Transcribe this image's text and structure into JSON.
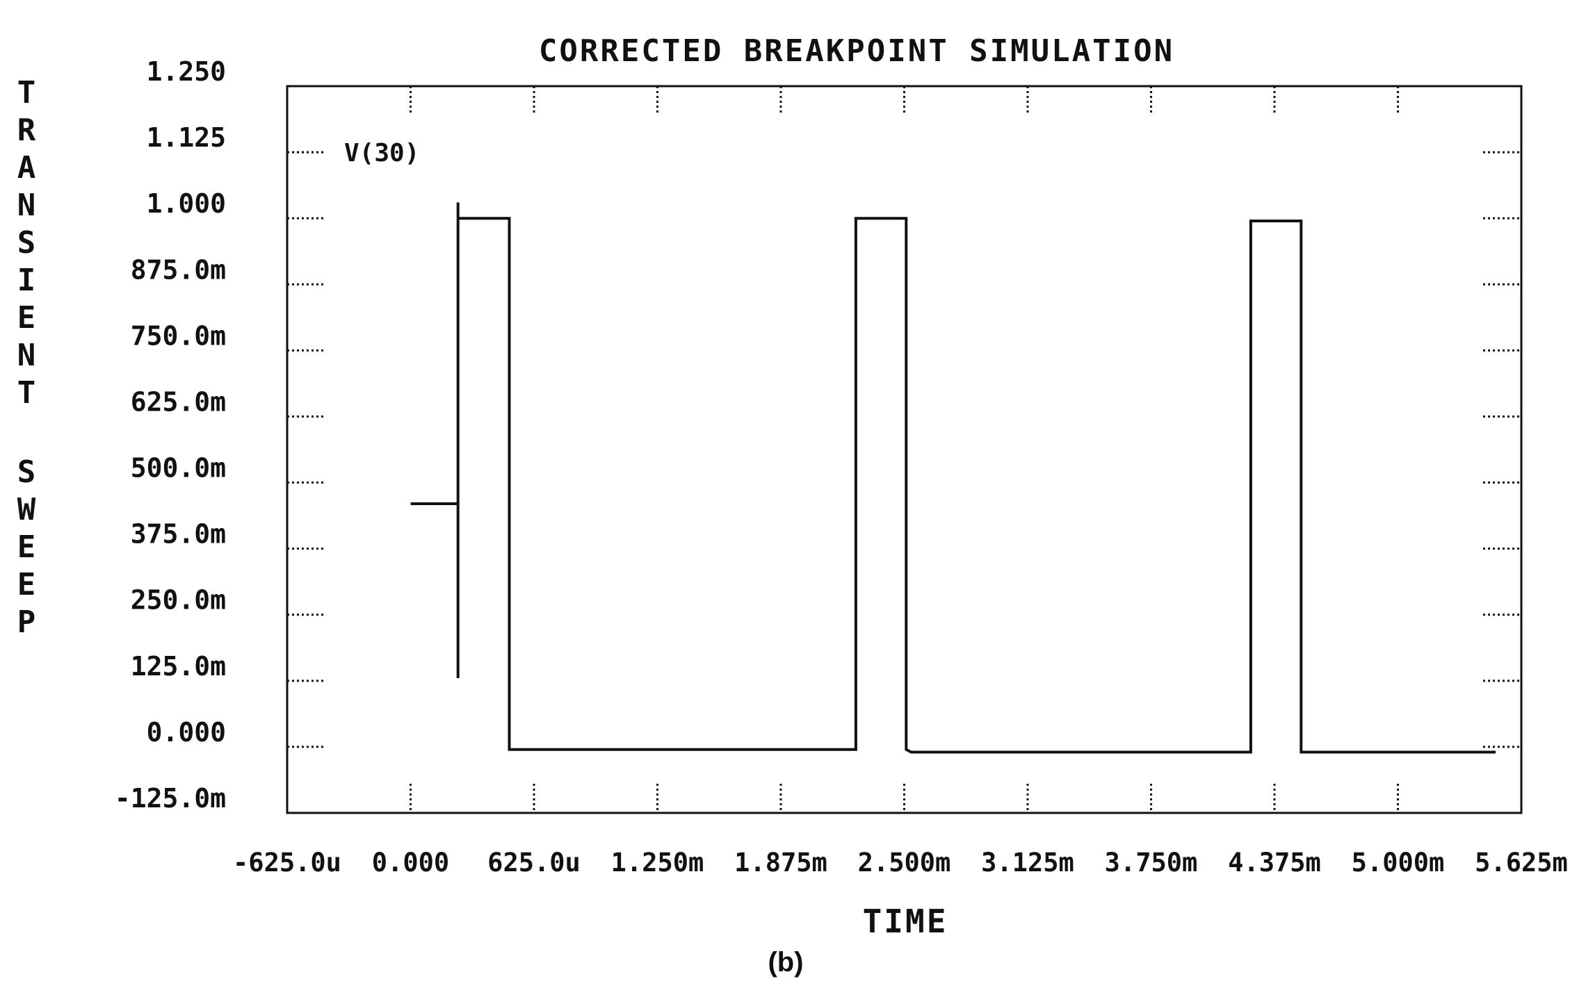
{
  "chart_data": {
    "type": "line",
    "title": "CORRECTED BREAKPOINT SIMULATION",
    "xlabel": "TIME",
    "ylabel": "TRANSIENT SWEEP",
    "caption": "(b)",
    "xlim": [
      -0.000625,
      0.005625
    ],
    "ylim": [
      -0.125,
      1.25
    ],
    "grid": "dotted tick marks",
    "x_tick_values": [
      -0.000625,
      0,
      0.000625,
      0.00125,
      0.001875,
      0.0025,
      0.003125,
      0.00375,
      0.004375,
      0.005,
      0.005625
    ],
    "x_tick_labels": [
      "-625.0u",
      "0.000",
      "625.0u",
      "1.250m",
      "1.875m",
      "2.500m",
      "3.125m",
      "3.750m",
      "4.375m",
      "5.000m",
      "5.625m"
    ],
    "y_tick_values": [
      1.25,
      1.125,
      1.0,
      0.875,
      0.75,
      0.625,
      0.5,
      0.375,
      0.25,
      0.125,
      0.0,
      -0.125
    ],
    "y_tick_labels": [
      "1.250",
      "1.125",
      "1.000",
      "875.0m",
      "750.0m",
      "625.0m",
      "500.0m",
      "375.0m",
      "250.0m",
      "125.0m",
      "0.000",
      "-125.0m"
    ],
    "series": [
      {
        "name": "V(30)",
        "color": "#111111",
        "x": [
          0.0,
          0.00024,
          0.00024,
          0.00024,
          0.00024,
          0.00024,
          0.0005,
          0.0005,
          0.000525,
          0.002255,
          0.002255,
          0.00251,
          0.00251,
          0.002535,
          0.004255,
          0.004255,
          0.00451,
          0.00451,
          0.004535,
          0.005495
        ],
        "y": [
          0.46,
          0.46,
          1.03,
          0.13,
          1.0,
          1.0,
          1.0,
          -0.005,
          -0.005,
          -0.005,
          1.0,
          1.0,
          -0.005,
          -0.01,
          -0.01,
          0.995,
          0.995,
          -0.01,
          -0.01,
          -0.01
        ]
      }
    ]
  }
}
